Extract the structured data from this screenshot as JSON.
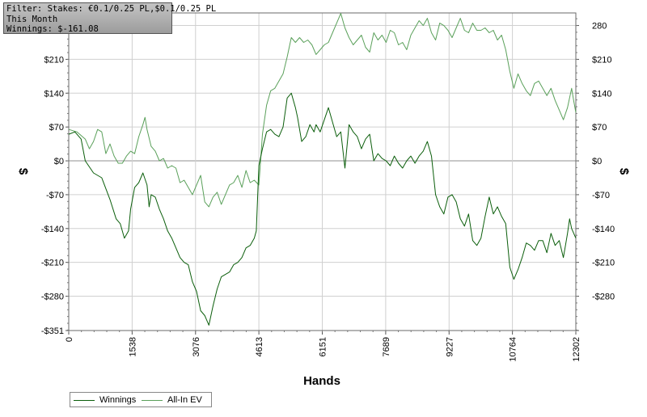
{
  "info": {
    "filter": "Filter: Stakes: €0.1/0.25 PL,$0.1/0.25 PL",
    "period": "This Month",
    "winnings": "Winnings: $-161.08"
  },
  "colors": {
    "winnings": "#0b5e0b",
    "allin_ev": "#5aa05a",
    "grid": "#d0d0d0",
    "zero_line": "#909090"
  },
  "chart_data": {
    "type": "line",
    "xlabel": "Hands",
    "ylabel": "$",
    "xlim": [
      0,
      12302
    ],
    "ylim": [
      -351,
      306
    ],
    "x_ticks": [
      "0",
      "1538",
      "3076",
      "4613",
      "6151",
      "7689",
      "9227",
      "10764",
      "12302"
    ],
    "y_ticks": [
      {
        "v": 280,
        "left": "",
        "right": "280"
      },
      {
        "v": 210,
        "left": "$210",
        "right": "$210"
      },
      {
        "v": 140,
        "left": "$140",
        "right": "$140"
      },
      {
        "v": 70,
        "left": "$70",
        "right": "$70"
      },
      {
        "v": 0,
        "left": "$0",
        "right": "$0"
      },
      {
        "v": -70,
        "left": "-$70",
        "right": "-$70"
      },
      {
        "v": -140,
        "left": "-$140",
        "right": "-$140"
      },
      {
        "v": -210,
        "left": "-$210",
        "right": "-$210"
      },
      {
        "v": -280,
        "left": "-$280",
        "right": "-$280"
      },
      {
        "v": -351,
        "left": "-$351",
        "right": ""
      }
    ],
    "grid": true,
    "legend_position": "bottom-left",
    "series": [
      {
        "name": "Winnings",
        "points": [
          [
            0,
            55
          ],
          [
            150,
            60
          ],
          [
            300,
            45
          ],
          [
            400,
            0
          ],
          [
            600,
            -25
          ],
          [
            800,
            -35
          ],
          [
            1000,
            -80
          ],
          [
            1150,
            -120
          ],
          [
            1250,
            -130
          ],
          [
            1350,
            -160
          ],
          [
            1450,
            -145
          ],
          [
            1500,
            -100
          ],
          [
            1600,
            -55
          ],
          [
            1700,
            -45
          ],
          [
            1800,
            -25
          ],
          [
            1900,
            -50
          ],
          [
            1950,
            -95
          ],
          [
            2000,
            -70
          ],
          [
            2100,
            -75
          ],
          [
            2200,
            -100
          ],
          [
            2300,
            -120
          ],
          [
            2400,
            -145
          ],
          [
            2500,
            -160
          ],
          [
            2600,
            -180
          ],
          [
            2700,
            -200
          ],
          [
            2800,
            -210
          ],
          [
            2900,
            -215
          ],
          [
            3000,
            -250
          ],
          [
            3100,
            -270
          ],
          [
            3200,
            -310
          ],
          [
            3300,
            -320
          ],
          [
            3400,
            -340
          ],
          [
            3500,
            -300
          ],
          [
            3600,
            -265
          ],
          [
            3700,
            -240
          ],
          [
            3800,
            -235
          ],
          [
            3900,
            -230
          ],
          [
            4000,
            -215
          ],
          [
            4100,
            -210
          ],
          [
            4200,
            -200
          ],
          [
            4300,
            -180
          ],
          [
            4400,
            -175
          ],
          [
            4500,
            -160
          ],
          [
            4550,
            -145
          ],
          [
            4613,
            -10
          ],
          [
            4700,
            25
          ],
          [
            4800,
            60
          ],
          [
            4900,
            65
          ],
          [
            5000,
            55
          ],
          [
            5100,
            50
          ],
          [
            5200,
            70
          ],
          [
            5300,
            130
          ],
          [
            5400,
            140
          ],
          [
            5500,
            110
          ],
          [
            5550,
            90
          ],
          [
            5650,
            40
          ],
          [
            5750,
            50
          ],
          [
            5850,
            75
          ],
          [
            5950,
            60
          ],
          [
            6000,
            75
          ],
          [
            6100,
            60
          ],
          [
            6200,
            85
          ],
          [
            6300,
            110
          ],
          [
            6400,
            80
          ],
          [
            6500,
            50
          ],
          [
            6600,
            60
          ],
          [
            6700,
            -15
          ],
          [
            6800,
            75
          ],
          [
            6900,
            60
          ],
          [
            7000,
            50
          ],
          [
            7100,
            25
          ],
          [
            7200,
            45
          ],
          [
            7300,
            55
          ],
          [
            7400,
            0
          ],
          [
            7500,
            15
          ],
          [
            7600,
            5
          ],
          [
            7700,
            0
          ],
          [
            7800,
            -10
          ],
          [
            7900,
            10
          ],
          [
            8000,
            -5
          ],
          [
            8100,
            -15
          ],
          [
            8200,
            0
          ],
          [
            8300,
            10
          ],
          [
            8400,
            -5
          ],
          [
            8500,
            10
          ],
          [
            8600,
            20
          ],
          [
            8700,
            40
          ],
          [
            8800,
            10
          ],
          [
            8900,
            -70
          ],
          [
            9000,
            -95
          ],
          [
            9100,
            -110
          ],
          [
            9200,
            -75
          ],
          [
            9300,
            -70
          ],
          [
            9400,
            -85
          ],
          [
            9500,
            -120
          ],
          [
            9600,
            -135
          ],
          [
            9700,
            -110
          ],
          [
            9800,
            -165
          ],
          [
            9900,
            -175
          ],
          [
            10000,
            -160
          ],
          [
            10100,
            -115
          ],
          [
            10200,
            -75
          ],
          [
            10300,
            -110
          ],
          [
            10400,
            -95
          ],
          [
            10500,
            -115
          ],
          [
            10600,
            -130
          ],
          [
            10700,
            -220
          ],
          [
            10800,
            -245
          ],
          [
            10900,
            -225
          ],
          [
            11000,
            -200
          ],
          [
            11100,
            -170
          ],
          [
            11200,
            -175
          ],
          [
            11300,
            -185
          ],
          [
            11400,
            -165
          ],
          [
            11500,
            -165
          ],
          [
            11600,
            -190
          ],
          [
            11700,
            -150
          ],
          [
            11800,
            -175
          ],
          [
            11900,
            -165
          ],
          [
            12000,
            -200
          ],
          [
            12050,
            -175
          ],
          [
            12100,
            -150
          ],
          [
            12150,
            -120
          ],
          [
            12200,
            -140
          ],
          [
            12302,
            -160
          ]
        ]
      },
      {
        "name": "All-In EV",
        "points": [
          [
            0,
            65
          ],
          [
            200,
            60
          ],
          [
            400,
            45
          ],
          [
            500,
            25
          ],
          [
            600,
            40
          ],
          [
            700,
            65
          ],
          [
            800,
            60
          ],
          [
            900,
            15
          ],
          [
            1000,
            35
          ],
          [
            1100,
            10
          ],
          [
            1200,
            -5
          ],
          [
            1300,
            -5
          ],
          [
            1400,
            10
          ],
          [
            1500,
            20
          ],
          [
            1600,
            15
          ],
          [
            1700,
            50
          ],
          [
            1800,
            75
          ],
          [
            1850,
            90
          ],
          [
            1900,
            65
          ],
          [
            2000,
            30
          ],
          [
            2100,
            20
          ],
          [
            2200,
            0
          ],
          [
            2300,
            5
          ],
          [
            2400,
            -15
          ],
          [
            2500,
            -10
          ],
          [
            2600,
            -15
          ],
          [
            2700,
            -45
          ],
          [
            2800,
            -40
          ],
          [
            2900,
            -55
          ],
          [
            3000,
            -70
          ],
          [
            3100,
            -50
          ],
          [
            3200,
            -30
          ],
          [
            3300,
            -85
          ],
          [
            3400,
            -95
          ],
          [
            3500,
            -75
          ],
          [
            3600,
            -65
          ],
          [
            3700,
            -90
          ],
          [
            3800,
            -70
          ],
          [
            3900,
            -50
          ],
          [
            4000,
            -45
          ],
          [
            4100,
            -30
          ],
          [
            4200,
            -55
          ],
          [
            4300,
            -20
          ],
          [
            4400,
            -45
          ],
          [
            4500,
            -40
          ],
          [
            4613,
            -50
          ],
          [
            4700,
            55
          ],
          [
            4800,
            115
          ],
          [
            4900,
            145
          ],
          [
            5000,
            150
          ],
          [
            5100,
            165
          ],
          [
            5200,
            180
          ],
          [
            5300,
            215
          ],
          [
            5400,
            255
          ],
          [
            5500,
            245
          ],
          [
            5600,
            255
          ],
          [
            5700,
            245
          ],
          [
            5800,
            250
          ],
          [
            5900,
            240
          ],
          [
            6000,
            220
          ],
          [
            6100,
            230
          ],
          [
            6200,
            240
          ],
          [
            6300,
            245
          ],
          [
            6400,
            265
          ],
          [
            6500,
            285
          ],
          [
            6600,
            305
          ],
          [
            6700,
            275
          ],
          [
            6800,
            255
          ],
          [
            6900,
            240
          ],
          [
            7000,
            250
          ],
          [
            7100,
            260
          ],
          [
            7200,
            235
          ],
          [
            7300,
            225
          ],
          [
            7400,
            265
          ],
          [
            7500,
            250
          ],
          [
            7600,
            260
          ],
          [
            7700,
            245
          ],
          [
            7800,
            270
          ],
          [
            7900,
            265
          ],
          [
            8000,
            240
          ],
          [
            8100,
            245
          ],
          [
            8200,
            230
          ],
          [
            8300,
            260
          ],
          [
            8400,
            275
          ],
          [
            8500,
            290
          ],
          [
            8600,
            280
          ],
          [
            8700,
            295
          ],
          [
            8800,
            265
          ],
          [
            8900,
            250
          ],
          [
            9000,
            285
          ],
          [
            9100,
            280
          ],
          [
            9200,
            270
          ],
          [
            9300,
            255
          ],
          [
            9400,
            275
          ],
          [
            9500,
            295
          ],
          [
            9600,
            270
          ],
          [
            9700,
            265
          ],
          [
            9800,
            285
          ],
          [
            9900,
            270
          ],
          [
            10000,
            270
          ],
          [
            10100,
            275
          ],
          [
            10200,
            265
          ],
          [
            10300,
            270
          ],
          [
            10400,
            250
          ],
          [
            10500,
            260
          ],
          [
            10600,
            230
          ],
          [
            10700,
            185
          ],
          [
            10800,
            150
          ],
          [
            10900,
            180
          ],
          [
            11000,
            160
          ],
          [
            11100,
            145
          ],
          [
            11200,
            135
          ],
          [
            11300,
            160
          ],
          [
            11400,
            165
          ],
          [
            11500,
            150
          ],
          [
            11600,
            135
          ],
          [
            11700,
            150
          ],
          [
            11800,
            125
          ],
          [
            11900,
            105
          ],
          [
            12000,
            85
          ],
          [
            12100,
            110
          ],
          [
            12200,
            150
          ],
          [
            12250,
            125
          ],
          [
            12302,
            100
          ]
        ]
      }
    ]
  },
  "legend": {
    "winnings_label": "Winnings",
    "allin_label": "All-In EV"
  }
}
